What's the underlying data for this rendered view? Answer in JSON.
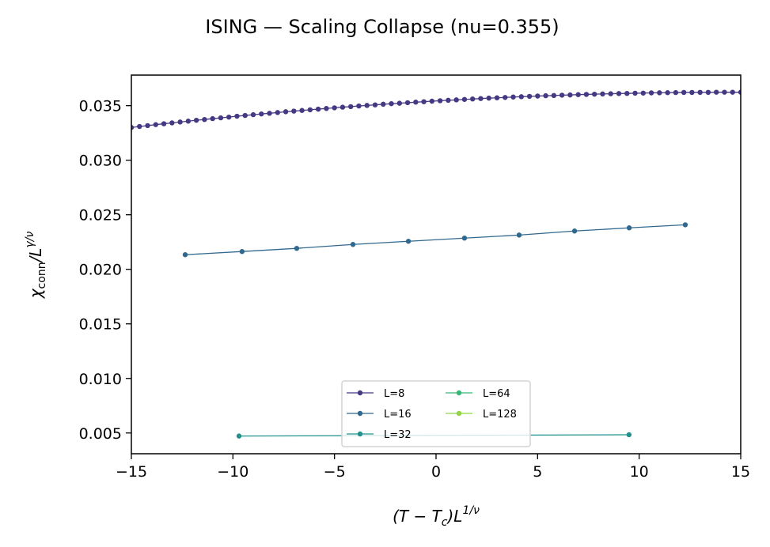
{
  "chart_data": {
    "type": "line",
    "title": "ISING — Scaling Collapse (nu=0.355)",
    "xlabel": "(T − T_c)L^{1/ν}",
    "ylabel": "χ_conn/L^{γ/ν}",
    "xlim": [
      -15,
      15
    ],
    "ylim": [
      0.0031,
      0.0378
    ],
    "xticks": [
      -15,
      -10,
      -5,
      0,
      5,
      10,
      15
    ],
    "xtick_labels": [
      "−15",
      "−10",
      "−5",
      "0",
      "5",
      "10",
      "15"
    ],
    "yticks": [
      0.005,
      0.01,
      0.015,
      0.02,
      0.025,
      0.03,
      0.035
    ],
    "ytick_labels": [
      "0.005",
      "0.010",
      "0.015",
      "0.020",
      "0.025",
      "0.030",
      "0.035"
    ],
    "grid": false,
    "legend": {
      "placement": "lower-center",
      "columns": 2
    },
    "series": [
      {
        "name": "L=8",
        "color": "#443983",
        "x": [
          -15,
          -14.6,
          -14.2,
          -13.8,
          -13.4,
          -13,
          -12.6,
          -12.2,
          -11.8,
          -11.4,
          -11,
          -10.6,
          -10.2,
          -9.8,
          -9.4,
          -9,
          -8.6,
          -8.2,
          -7.8,
          -7.4,
          -7,
          -6.6,
          -6.2,
          -5.8,
          -5.4,
          -5,
          -4.6,
          -4.2,
          -3.8,
          -3.4,
          -3,
          -2.6,
          -2.2,
          -1.8,
          -1.4,
          -1,
          -0.6,
          -0.2,
          0.2,
          0.6,
          1,
          1.4,
          1.8,
          2.2,
          2.6,
          3,
          3.4,
          3.8,
          4.2,
          4.6,
          5,
          5.4,
          5.8,
          6.2,
          6.6,
          7,
          7.4,
          7.8,
          8.2,
          8.6,
          9,
          9.4,
          9.8,
          10.2,
          10.6,
          11,
          11.4,
          11.8,
          12.2,
          12.6,
          13,
          13.4,
          13.8,
          14.2,
          14.6,
          15
        ],
        "y": [
          0.033,
          0.03309,
          0.03317,
          0.03326,
          0.03334,
          0.03342,
          0.0335,
          0.03358,
          0.03366,
          0.03373,
          0.03381,
          0.03388,
          0.03395,
          0.03403,
          0.0341,
          0.03417,
          0.03424,
          0.0343,
          0.03437,
          0.03444,
          0.0345,
          0.03456,
          0.03462,
          0.03468,
          0.03474,
          0.0348,
          0.03486,
          0.03491,
          0.03497,
          0.03502,
          0.03507,
          0.03513,
          0.03518,
          0.03522,
          0.03527,
          0.03532,
          0.03536,
          0.03541,
          0.03545,
          0.03549,
          0.03553,
          0.03557,
          0.03561,
          0.03565,
          0.03569,
          0.03572,
          0.03575,
          0.03579,
          0.03582,
          0.03585,
          0.03588,
          0.03591,
          0.03593,
          0.03596,
          0.03598,
          0.03601,
          0.03603,
          0.03605,
          0.03607,
          0.03609,
          0.03611,
          0.03612,
          0.03614,
          0.03615,
          0.03617,
          0.03618,
          0.03619,
          0.0362,
          0.03621,
          0.03621,
          0.03622,
          0.03622,
          0.03623,
          0.03623,
          0.03623,
          0.03623
        ]
      },
      {
        "name": "L=16",
        "color": "#31688e",
        "x": [
          -12.35,
          -9.55,
          -6.86,
          -4.09,
          -1.36,
          1.4,
          4.09,
          6.82,
          9.51,
          12.27
        ],
        "y": [
          0.02134,
          0.02163,
          0.02192,
          0.02228,
          0.02257,
          0.02286,
          0.02314,
          0.02351,
          0.0238,
          0.02408
        ]
      },
      {
        "name": "L=32",
        "color": "#21918c",
        "x": [
          -9.7,
          9.5
        ],
        "y": [
          0.00472,
          0.00484
        ]
      },
      {
        "name": "L=64",
        "color": "#35b779",
        "x": [],
        "y": []
      },
      {
        "name": "L=128",
        "color": "#90d743",
        "x": [],
        "y": []
      }
    ]
  }
}
